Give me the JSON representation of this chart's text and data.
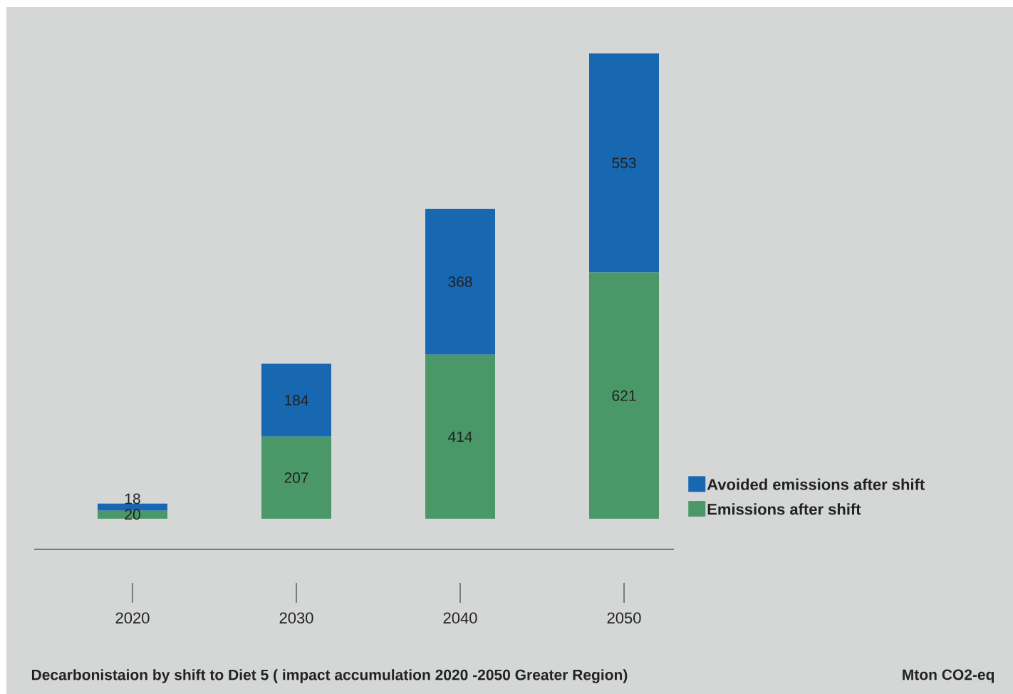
{
  "chart_data": {
    "type": "bar",
    "stacked": true,
    "data_labels": true,
    "legend": "right",
    "title": "Decarbonistaion by shift to Diet 5 ( impact accumulation 2020 -2050 Greater Region)",
    "annotations": [
      "Mton CO2-eq"
    ],
    "categories": [
      "2020",
      "2030",
      "2040",
      "2050"
    ],
    "series": [
      {
        "name": "Emissions after shift",
        "color": "#4a9868",
        "values": [
          20,
          207,
          414,
          621
        ]
      },
      {
        "name": "Avoided emissions after shift",
        "color": "#1767b1",
        "values": [
          18,
          184,
          368,
          553
        ]
      }
    ]
  }
}
